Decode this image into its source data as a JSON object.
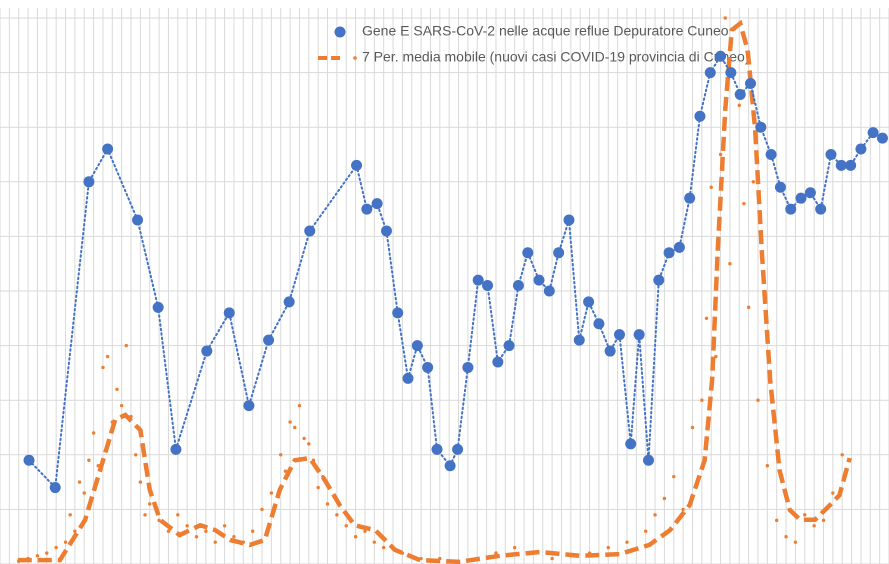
{
  "chart_data": {
    "type": "line",
    "xlim": [
      0,
      95
    ],
    "ylim": [
      0,
      10
    ],
    "xticks": [
      0,
      1,
      2,
      3,
      4,
      5,
      6,
      7,
      8,
      9,
      10,
      11,
      12,
      13,
      14,
      15,
      16,
      17,
      18,
      19,
      20,
      21,
      22,
      23,
      24,
      25,
      26,
      27,
      28,
      29,
      30,
      31,
      32,
      33,
      34,
      35,
      36,
      37,
      38,
      39,
      40,
      41,
      42,
      43,
      44,
      45,
      46,
      47,
      48,
      49,
      50,
      51,
      52,
      53,
      54,
      55,
      56,
      57,
      58,
      59,
      60,
      61,
      62,
      63,
      64,
      65,
      66,
      67,
      68,
      69,
      70,
      71,
      72,
      73,
      74,
      75,
      76,
      77,
      78,
      79,
      80,
      81,
      82,
      83,
      84,
      85,
      86,
      87,
      88,
      89,
      90,
      91,
      92,
      93,
      94,
      95
    ],
    "yticks": [
      0,
      1,
      2,
      3,
      4,
      5,
      6,
      7,
      8,
      9,
      10
    ],
    "grid": true,
    "legend": "top",
    "series": [
      {
        "name": "Gene E SARS-CoV-2 nelle acque reflue Depuratore Cuneo",
        "color": "#4472c4",
        "style": "dotted-markers",
        "x": [
          3.1,
          5.9,
          9.5,
          11.5,
          14.7,
          16.9,
          18.8,
          22.1,
          24.5,
          26.6,
          28.7,
          30.9,
          33.1,
          38.1,
          39.2,
          40.3,
          41.3,
          42.5,
          43.6,
          44.6,
          45.7,
          46.7,
          48.1,
          48.9,
          50,
          51.1,
          52.1,
          53.2,
          54.4,
          55.4,
          56.4,
          57.6,
          58.7,
          59.7,
          60.8,
          61.9,
          62.9,
          64,
          65.2,
          66.2,
          67.4,
          68.3,
          69.3,
          70.4,
          71.5,
          72.6,
          73.7,
          74.8,
          75.9,
          77,
          78.1,
          79.1,
          80.2,
          81.3,
          82.4,
          83.4,
          84.5,
          85.6,
          86.6,
          87.7,
          88.8,
          89.9,
          90.9,
          92,
          93.3,
          94.3
        ],
        "values": [
          1.9,
          1.4,
          7.0,
          7.6,
          6.3,
          4.7,
          2.1,
          3.9,
          4.6,
          2.9,
          4.1,
          4.8,
          6.1,
          7.3,
          6.5,
          6.6,
          6.1,
          4.6,
          3.4,
          4.0,
          3.6,
          2.1,
          1.8,
          2.1,
          3.6,
          5.2,
          5.1,
          3.7,
          4.0,
          5.1,
          5.7,
          5.2,
          5.0,
          5.7,
          6.3,
          4.1,
          4.8,
          4.4,
          3.9,
          4.2,
          2.2,
          4.2,
          1.9,
          5.2,
          5.7,
          5.8,
          6.7,
          8.2,
          9.0,
          9.3,
          9.0,
          8.6,
          8.8,
          8.0,
          7.5,
          6.9,
          6.5,
          6.7,
          6.8,
          6.5,
          7.5,
          7.3,
          7.3,
          7.6,
          7.9,
          7.8
        ]
      },
      {
        "name": "7 Per. media mobile (nuovi casi COVID-19 provincia di Cuneo)",
        "color": "#ed7d31",
        "style": "dashed",
        "x": [
          1.9,
          6.4,
          9.1,
          10.7,
          12.3,
          13.4,
          15,
          16,
          17.1,
          19.2,
          21.4,
          23,
          24.6,
          26.7,
          28.3,
          29.9,
          31.5,
          33.1,
          34.7,
          36.3,
          37.9,
          40.1,
          42.2,
          44.9,
          49.1,
          53.4,
          57.7,
          62,
          66.2,
          69.4,
          71.6,
          73.7,
          75.3,
          76.1,
          76.7,
          77.5,
          78.2,
          79.1,
          79.9,
          80.7,
          81.4,
          82.3,
          83.3,
          84.4,
          85.5,
          87.1,
          88.7,
          89.7,
          90.8
        ],
        "values": [
          0.07,
          0.07,
          0.81,
          1.72,
          2.64,
          2.73,
          2.45,
          1.36,
          0.81,
          0.53,
          0.71,
          0.62,
          0.44,
          0.35,
          0.44,
          1.36,
          1.9,
          1.94,
          1.54,
          1.08,
          0.71,
          0.62,
          0.26,
          0.07,
          0.04,
          0.15,
          0.22,
          0.15,
          0.18,
          0.35,
          0.62,
          1.08,
          1.9,
          3.37,
          5.75,
          8.32,
          9.78,
          9.9,
          9.41,
          7.95,
          5.75,
          3.37,
          1.72,
          0.99,
          0.81,
          0.81,
          1.08,
          1.26,
          1.94
        ]
      }
    ],
    "points": {
      "color": "#ed7d31",
      "x": [
        2,
        3,
        4,
        5,
        6,
        7,
        7.5,
        8,
        8.5,
        9,
        9.5,
        10,
        10.5,
        11,
        11.5,
        12,
        12.5,
        13,
        13.5,
        14,
        14.5,
        15,
        15.5,
        16,
        17,
        18,
        19,
        20,
        21,
        22,
        23,
        24,
        25,
        26,
        27,
        28,
        29,
        30,
        30.5,
        31,
        31.5,
        32,
        32.5,
        33,
        33.5,
        34,
        34.5,
        35,
        36,
        37,
        38,
        39,
        40,
        41,
        42,
        43,
        45,
        47,
        49,
        51,
        53,
        55,
        57,
        59,
        61,
        63,
        65,
        67,
        69,
        70,
        71,
        72,
        73,
        74,
        75,
        75.5,
        76,
        76.5,
        77,
        77.5,
        78,
        78.5,
        79,
        79.5,
        80,
        80.5,
        81,
        82,
        83,
        84,
        85,
        86,
        87,
        88,
        89,
        90
      ],
      "values": [
        0.05,
        0.1,
        0.15,
        0.2,
        0.3,
        0.4,
        0.9,
        0.6,
        1.5,
        1.3,
        1.9,
        2.4,
        1.8,
        3.6,
        3.8,
        2.6,
        3.2,
        2.9,
        4.0,
        2.7,
        2.0,
        1.5,
        0.9,
        1.1,
        0.8,
        0.6,
        0.9,
        0.7,
        0.5,
        0.6,
        0.4,
        0.7,
        0.5,
        0.4,
        0.6,
        1.0,
        1.3,
        2.0,
        1.7,
        2.6,
        2.5,
        2.9,
        2.3,
        2.2,
        1.9,
        1.4,
        1.6,
        1.1,
        0.9,
        0.7,
        0.5,
        0.6,
        0.4,
        0.3,
        0.3,
        0.2,
        0.1,
        0.1,
        0.05,
        0.1,
        0.2,
        0.3,
        0.2,
        0.1,
        0.15,
        0.2,
        0.3,
        0.4,
        0.6,
        0.9,
        1.2,
        1.6,
        1.0,
        2.5,
        3.0,
        4.5,
        6.9,
        3.8,
        7.5,
        10.0,
        5.5,
        9.8,
        8.4,
        6.6,
        4.7,
        7.0,
        3.0,
        1.8,
        0.8,
        0.5,
        0.4,
        0.9,
        0.7,
        0.8,
        1.3,
        2.0
      ]
    }
  }
}
